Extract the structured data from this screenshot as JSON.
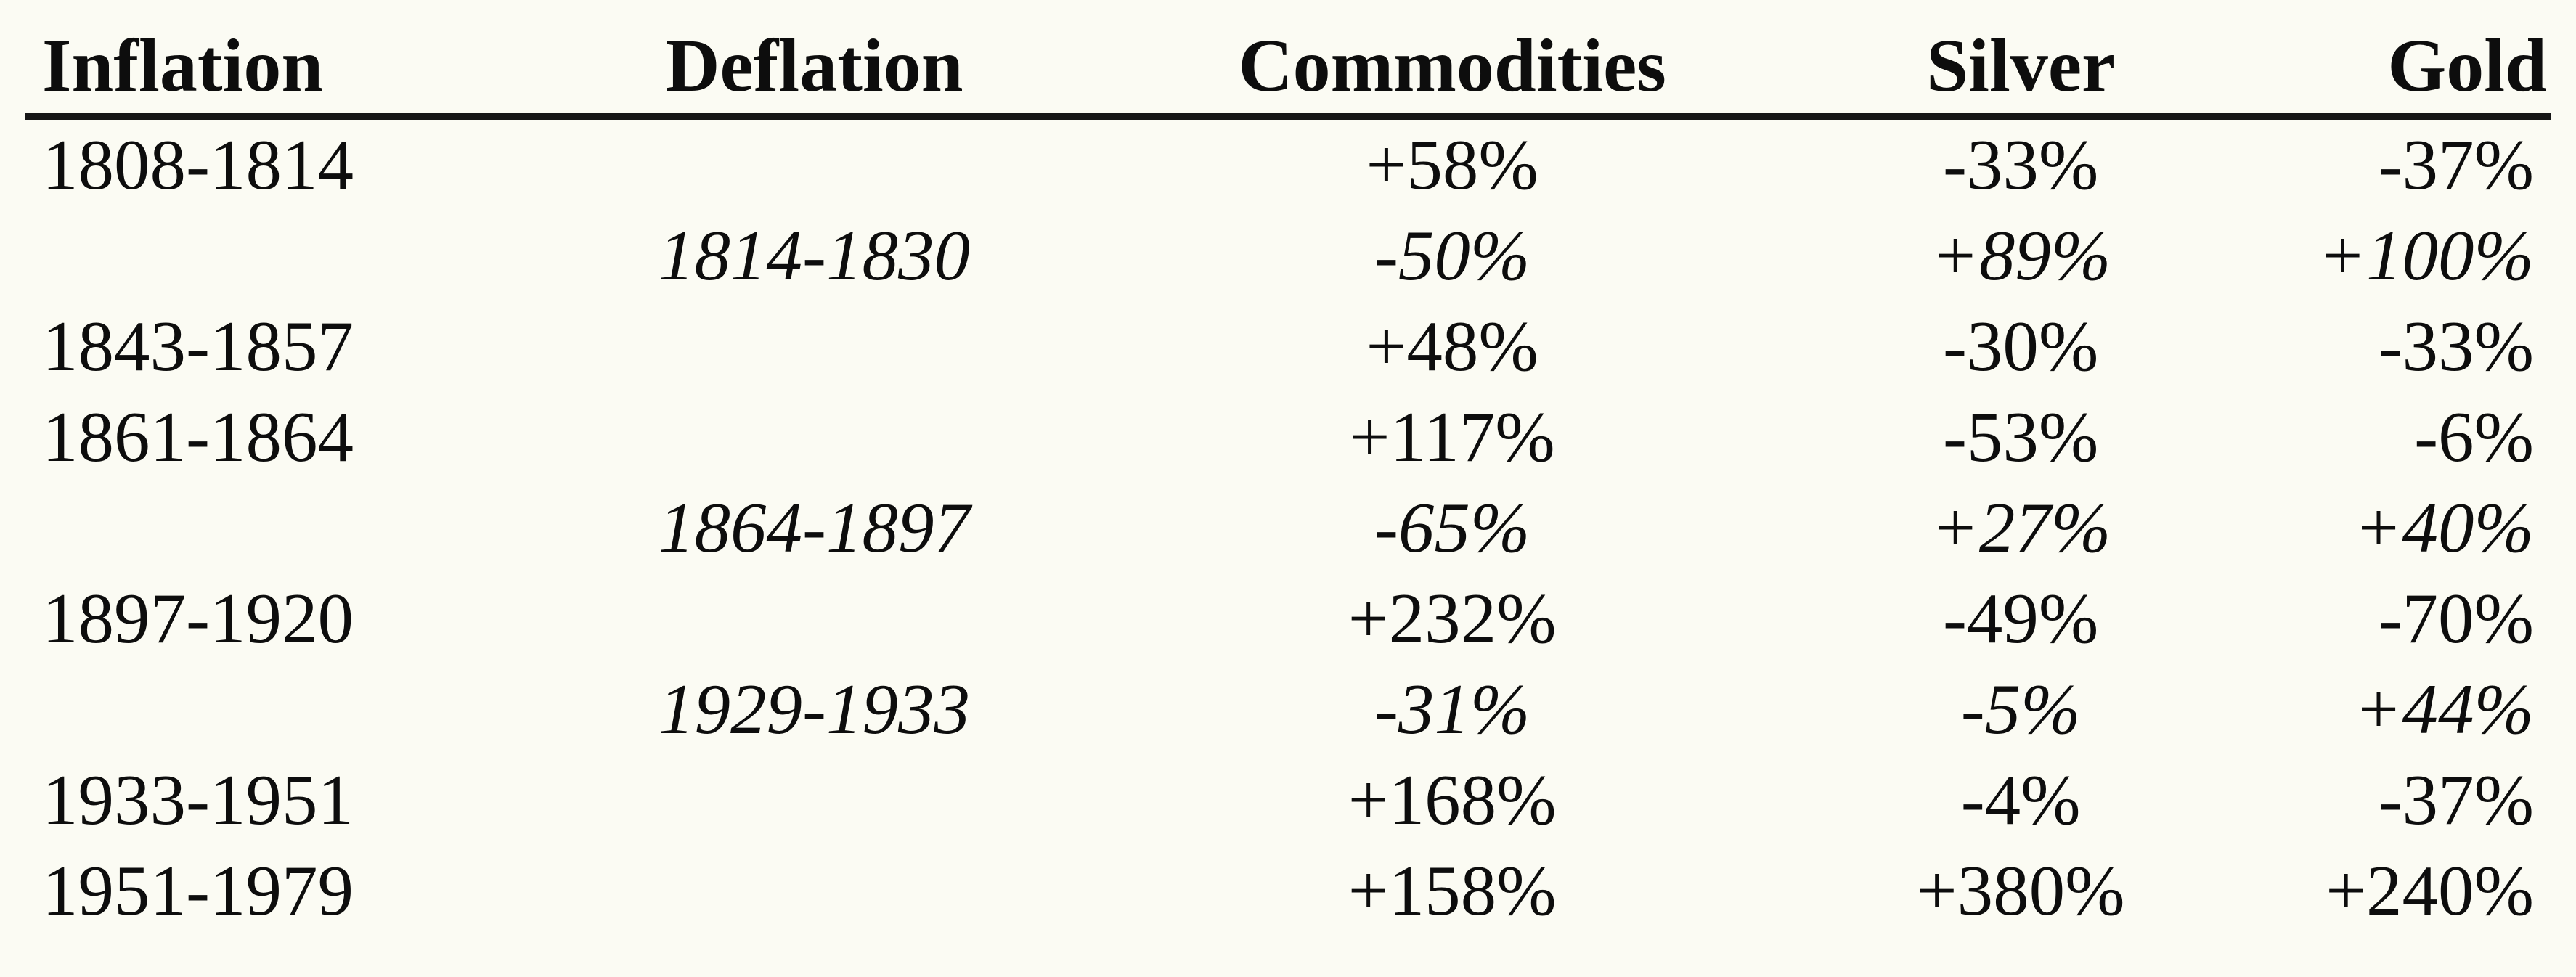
{
  "table": {
    "columns": [
      "Inflation",
      "Deflation",
      "Commodities",
      "Silver",
      "Gold"
    ],
    "rows": [
      {
        "period_type": "inflation",
        "inflation": "1808-1814",
        "deflation": "",
        "commodities": "+58%",
        "silver": "-33%",
        "gold": "-37%"
      },
      {
        "period_type": "deflation",
        "inflation": "",
        "deflation": "1814-1830",
        "commodities": "-50%",
        "silver": "+89%",
        "gold": "+100%"
      },
      {
        "period_type": "inflation",
        "inflation": "1843-1857",
        "deflation": "",
        "commodities": "+48%",
        "silver": "-30%",
        "gold": "-33%"
      },
      {
        "period_type": "inflation",
        "inflation": "1861-1864",
        "deflation": "",
        "commodities": "+117%",
        "silver": "-53%",
        "gold": "-6%"
      },
      {
        "period_type": "deflation",
        "inflation": "",
        "deflation": "1864-1897",
        "commodities": "-65%",
        "silver": "+27%",
        "gold": "+40%"
      },
      {
        "period_type": "inflation",
        "inflation": "1897-1920",
        "deflation": "",
        "commodities": "+232%",
        "silver": "-49%",
        "gold": "-70%"
      },
      {
        "period_type": "deflation",
        "inflation": "",
        "deflation": "1929-1933",
        "commodities": "-31%",
        "silver": "-5%",
        "gold": "+44%"
      },
      {
        "period_type": "inflation",
        "inflation": "1933-1951",
        "deflation": "",
        "commodities": "+168%",
        "silver": "-4%",
        "gold": "-37%"
      },
      {
        "period_type": "inflation",
        "inflation": "1951-1979",
        "deflation": "",
        "commodities": "+158%",
        "silver": "+380%",
        "gold": "+240%"
      }
    ]
  },
  "colors": {
    "paper_background": "#fbfbf3",
    "ink": "#0d0d0d"
  }
}
